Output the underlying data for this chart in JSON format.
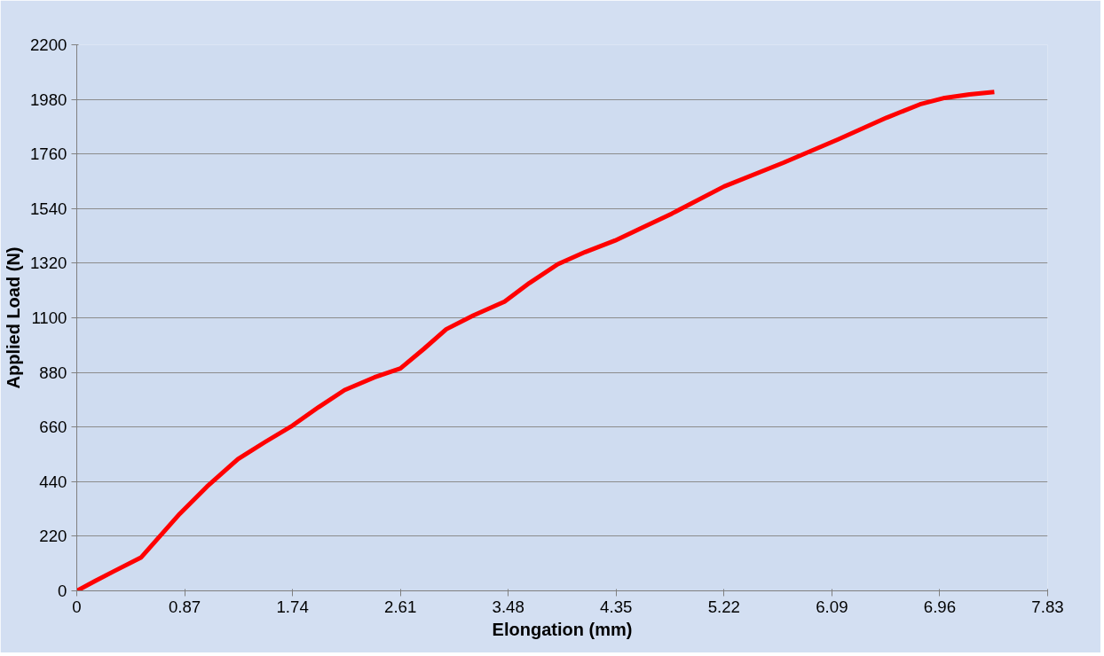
{
  "chart_data": {
    "type": "line",
    "xlabel": "Elongation (mm)",
    "ylabel": "Applied Load (N)",
    "series": [
      {
        "color": "#ff0000",
        "x": [
          0,
          0.15,
          0.3,
          0.52,
          0.83,
          1.05,
          1.3,
          1.52,
          1.74,
          1.95,
          2.16,
          2.4,
          2.61,
          2.8,
          2.98,
          3.2,
          3.45,
          3.65,
          3.88,
          4.1,
          4.34,
          4.8,
          5.22,
          5.7,
          6.14,
          6.53,
          6.8,
          7.0,
          7.2,
          7.4
        ],
        "values": [
          0,
          40,
          79,
          135,
          310,
          420,
          531,
          600,
          666,
          740,
          809,
          860,
          896,
          975,
          1054,
          1110,
          1165,
          1240,
          1316,
          1365,
          1411,
          1520,
          1629,
          1725,
          1819,
          1906,
          1960,
          1986,
          2000,
          2010
        ]
      }
    ],
    "xlim": [
      0,
      7.83
    ],
    "xticks": [
      0,
      0.87,
      1.74,
      2.61,
      3.48,
      4.35,
      5.22,
      6.09,
      6.96,
      7.83
    ],
    "ylim": [
      0,
      2200
    ],
    "yticks": [
      0,
      220,
      440,
      660,
      880,
      1100,
      1320,
      1540,
      1760,
      1980,
      2200
    ],
    "grid": "y",
    "marker": "none",
    "line_style": "solid"
  }
}
